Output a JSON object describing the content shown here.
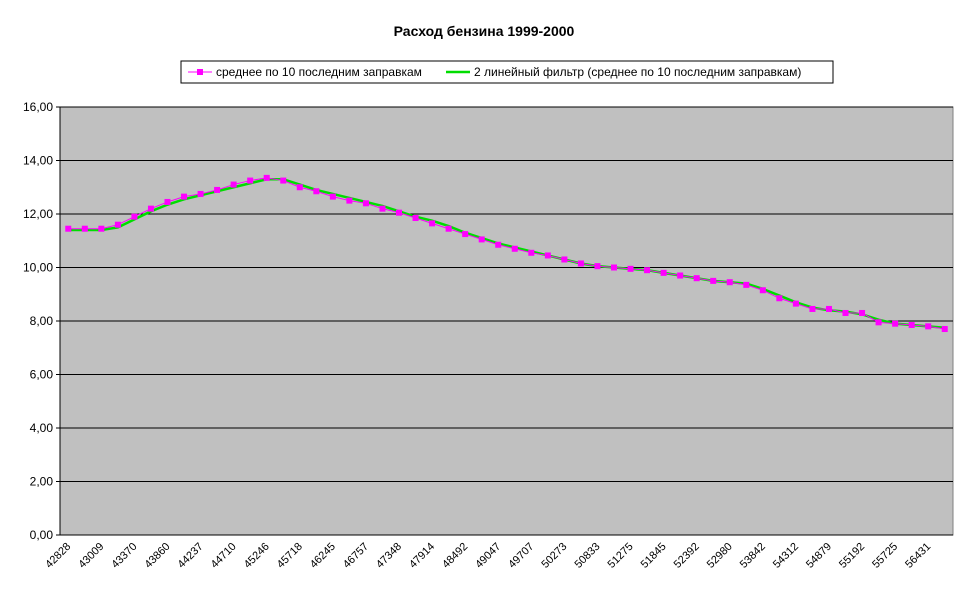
{
  "chart_data": {
    "type": "line",
    "title": "Расход бензина 1999-2000",
    "categories": [
      "42828",
      null,
      "43009",
      null,
      "43370",
      null,
      "43860",
      null,
      "44237",
      null,
      "44710",
      null,
      "45246",
      null,
      "45718",
      null,
      "46245",
      null,
      "46757",
      null,
      "47348",
      null,
      "47914",
      null,
      "48492",
      null,
      "49047",
      null,
      "49707",
      null,
      "50273",
      null,
      "50833",
      null,
      "51275",
      null,
      "51845",
      null,
      "52392",
      null,
      "52980",
      null,
      "53842",
      null,
      "54312",
      null,
      "54879",
      null,
      "55192",
      null,
      "55725",
      null,
      "56431",
      null
    ],
    "series": [
      {
        "name": "среднее по 10 последним заправкам",
        "color": "#ff00ff",
        "marker": true,
        "values": [
          11.45,
          11.45,
          11.45,
          11.6,
          11.9,
          12.2,
          12.45,
          12.65,
          12.75,
          12.9,
          13.1,
          13.25,
          13.35,
          13.25,
          13.0,
          12.85,
          12.65,
          12.5,
          12.4,
          12.2,
          12.05,
          11.85,
          11.65,
          11.45,
          11.25,
          11.05,
          10.85,
          10.7,
          10.55,
          10.45,
          10.3,
          10.15,
          10.05,
          10.0,
          9.95,
          9.9,
          9.8,
          9.7,
          9.6,
          9.5,
          9.45,
          9.35,
          9.15,
          8.85,
          8.65,
          8.45,
          8.45,
          8.3,
          8.3,
          7.95,
          7.9,
          7.85,
          7.8,
          7.7
        ]
      },
      {
        "name": "2 линейный фильтр (среднее по 10 последним заправкам)",
        "color": "#00dd00",
        "marker": false,
        "values": [
          11.4,
          11.4,
          11.4,
          11.5,
          11.8,
          12.1,
          12.35,
          12.55,
          12.7,
          12.85,
          13.0,
          13.15,
          13.3,
          13.3,
          13.1,
          12.9,
          12.75,
          12.6,
          12.45,
          12.3,
          12.1,
          11.9,
          11.75,
          11.55,
          11.3,
          11.1,
          10.9,
          10.75,
          10.6,
          10.45,
          10.3,
          10.15,
          10.05,
          10.0,
          9.95,
          9.9,
          9.8,
          9.7,
          9.6,
          9.5,
          9.45,
          9.4,
          9.2,
          8.95,
          8.7,
          8.5,
          8.4,
          8.35,
          8.25,
          8.05,
          7.9,
          7.85,
          7.8,
          7.75
        ]
      }
    ],
    "ylim": [
      0,
      16
    ],
    "yticks": [
      {
        "value": 0,
        "label": "0,00"
      },
      {
        "value": 2,
        "label": "2,00"
      },
      {
        "value": 4,
        "label": "4,00"
      },
      {
        "value": 6,
        "label": "6,00"
      },
      {
        "value": 8,
        "label": "8,00"
      },
      {
        "value": 10,
        "label": "10,00"
      },
      {
        "value": 12,
        "label": "12,00"
      },
      {
        "value": 14,
        "label": "14,00"
      },
      {
        "value": 16,
        "label": "16,00"
      }
    ],
    "grid": true,
    "legend": "top"
  }
}
